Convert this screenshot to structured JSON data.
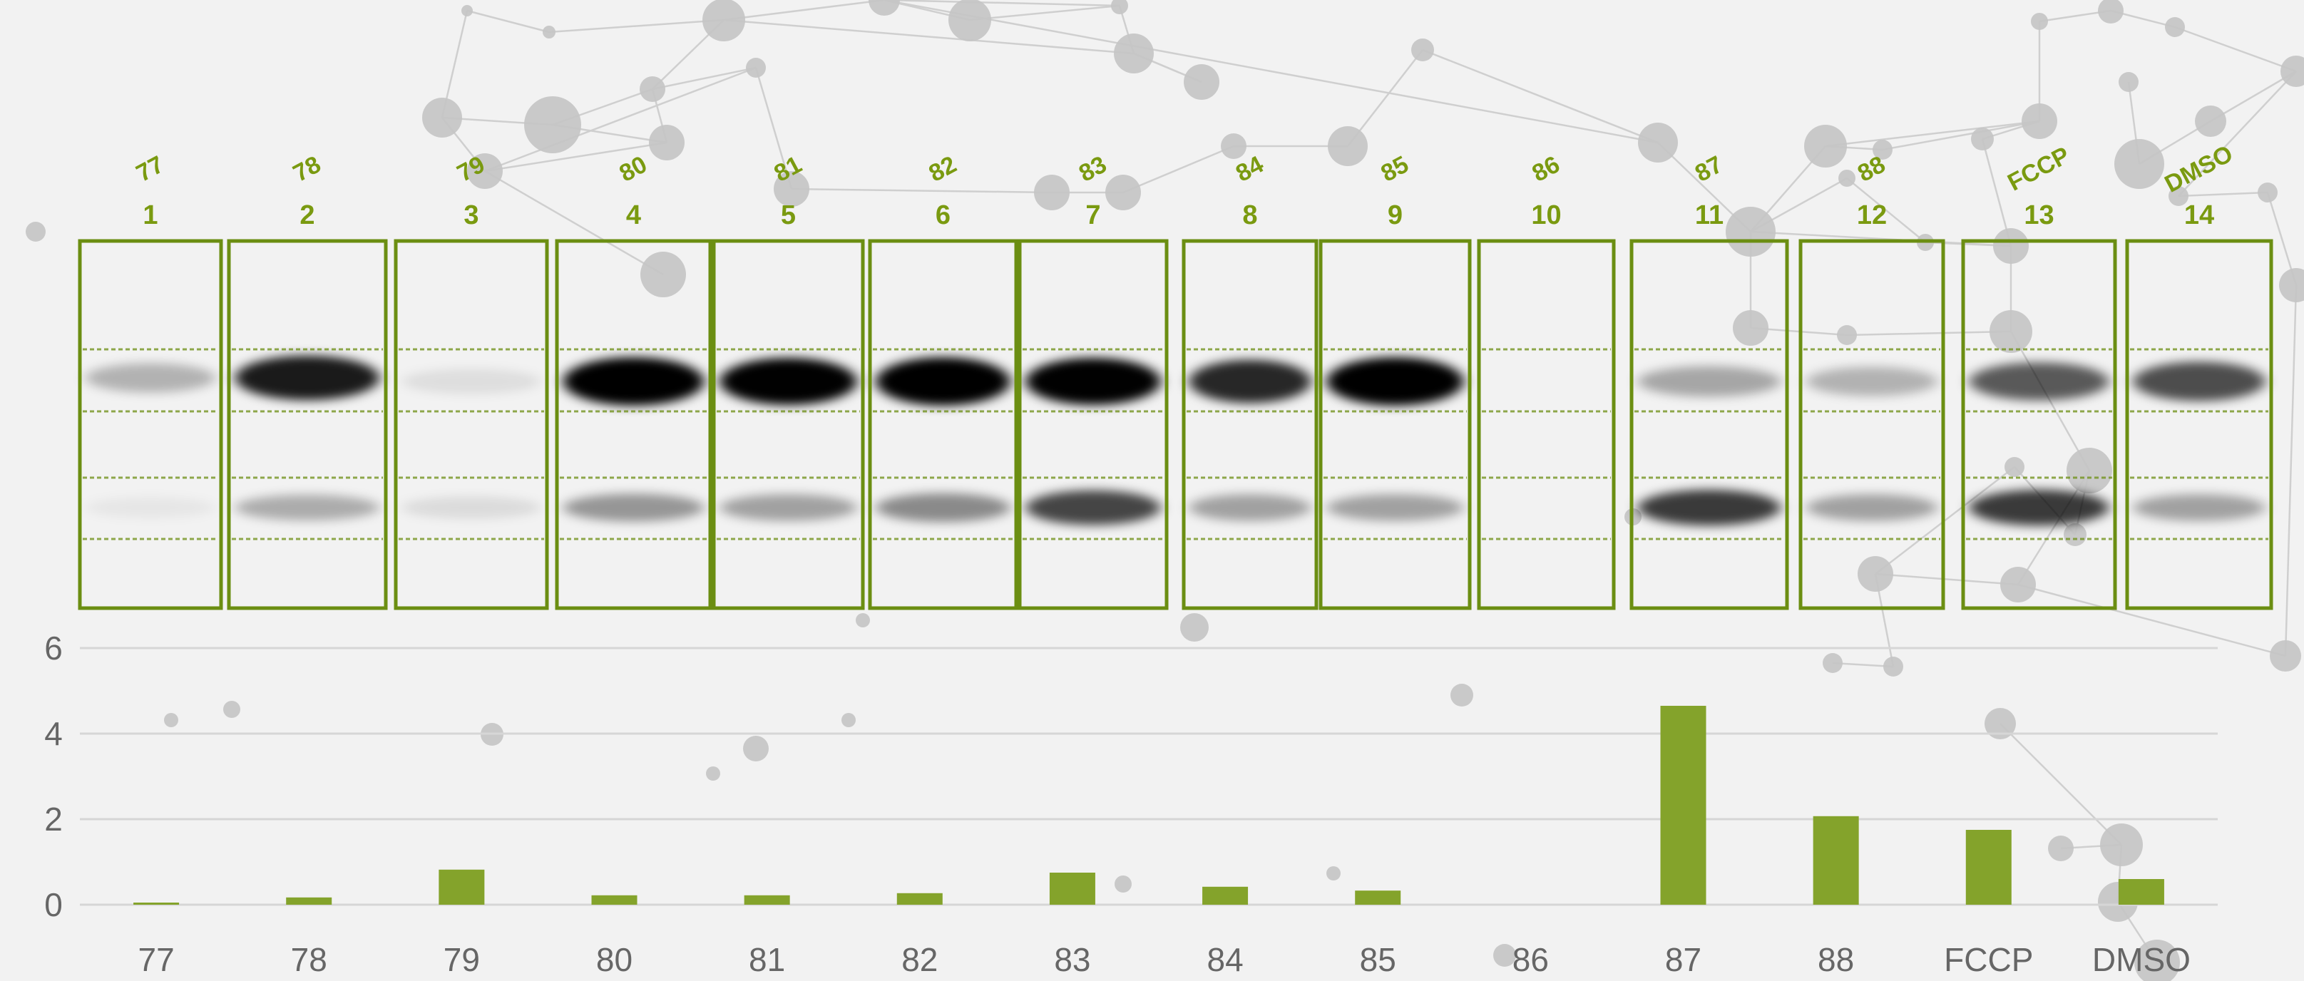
{
  "colors": {
    "accent": "#84a32b",
    "box": "#6b8e12",
    "label": "#7a9a10",
    "grid": "#d6d6d6",
    "tick_text": "#666666",
    "band": "#000000",
    "background": "#f2f2f2"
  },
  "blot": {
    "lanes": [
      {
        "top": "77",
        "num": "1"
      },
      {
        "top": "78",
        "num": "2"
      },
      {
        "top": "79",
        "num": "3"
      },
      {
        "top": "80",
        "num": "4"
      },
      {
        "top": "81",
        "num": "5"
      },
      {
        "top": "82",
        "num": "6"
      },
      {
        "top": "83",
        "num": "7"
      },
      {
        "top": "84",
        "num": "8"
      },
      {
        "top": "85",
        "num": "9"
      },
      {
        "top": "86",
        "num": "10"
      },
      {
        "top": "87",
        "num": "11"
      },
      {
        "top": "88",
        "num": "12"
      },
      {
        "top": "FCCP",
        "num": "13"
      },
      {
        "top": "DMSO",
        "num": "14"
      }
    ],
    "upper_band_intensity": [
      0.25,
      0.85,
      0.08,
      1.0,
      0.95,
      1.0,
      0.95,
      0.8,
      1.0,
      0.0,
      0.3,
      0.25,
      0.6,
      0.65
    ],
    "lower_band_intensity": [
      0.05,
      0.3,
      0.1,
      0.4,
      0.35,
      0.45,
      0.75,
      0.35,
      0.35,
      0.0,
      0.8,
      0.35,
      0.8,
      0.35
    ]
  },
  "chart_data": {
    "type": "bar",
    "categories": [
      "77",
      "78",
      "79",
      "80",
      "81",
      "82",
      "83",
      "84",
      "85",
      "86",
      "87",
      "88",
      "FCCP",
      "DMSO"
    ],
    "values": [
      0.05,
      0.17,
      0.82,
      0.22,
      0.22,
      0.27,
      0.75,
      0.42,
      0.33,
      0.0,
      4.65,
      2.07,
      1.75,
      0.6
    ],
    "title": "",
    "xlabel": "",
    "ylabel": "",
    "ylim": [
      0,
      6
    ],
    "yticks": [
      "0",
      "2",
      "4",
      "6"
    ],
    "grid": true,
    "legend": "none"
  }
}
